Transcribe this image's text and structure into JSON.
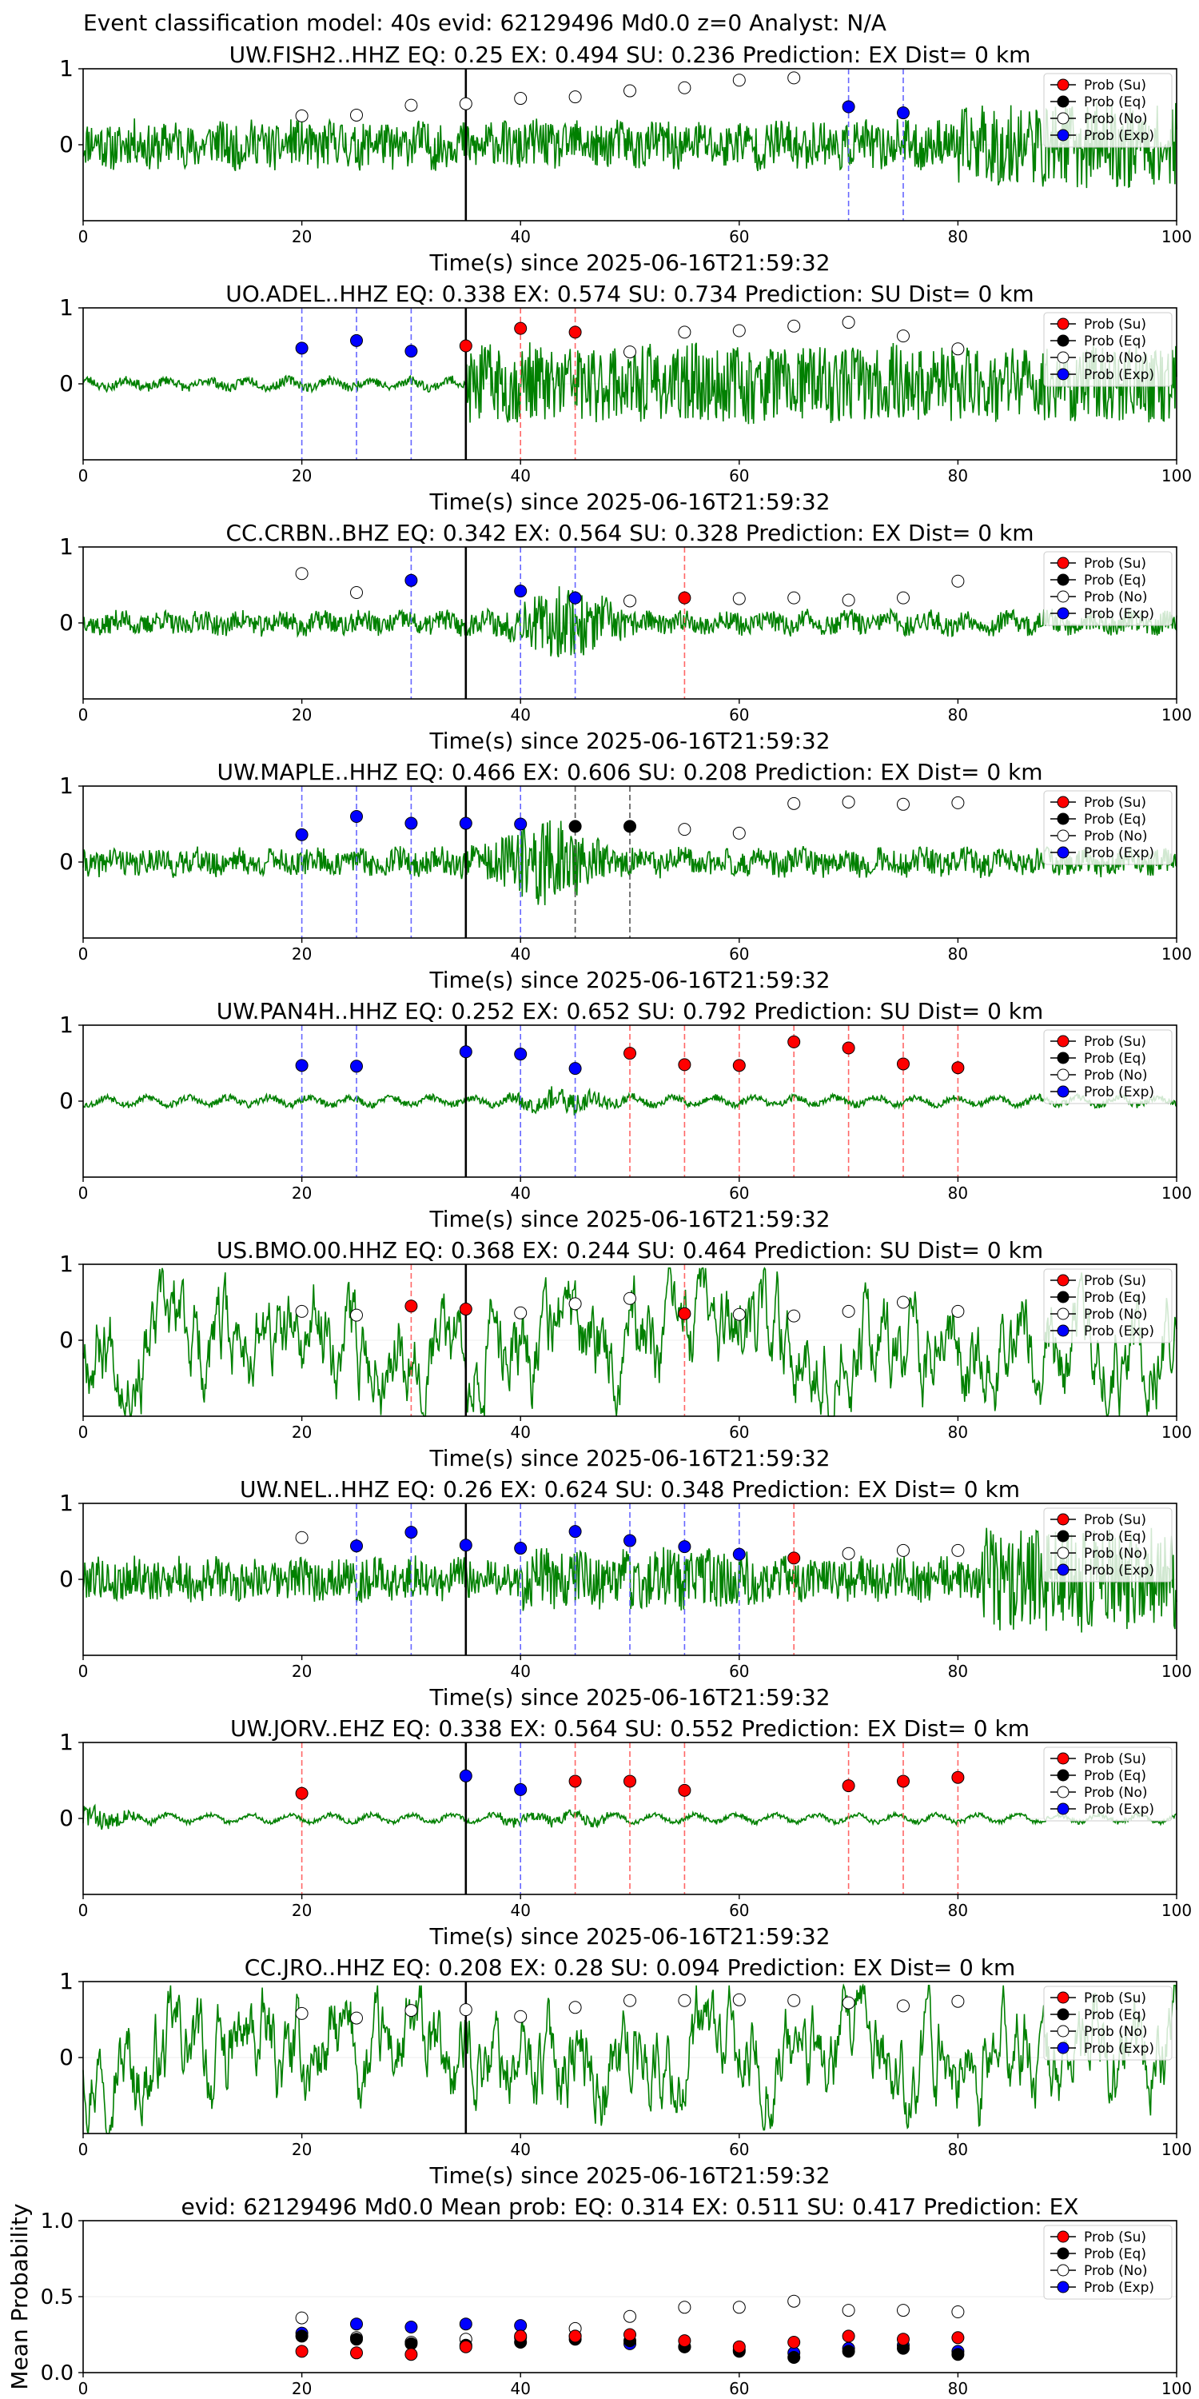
{
  "figure": {
    "suptitle": "Event classification model: 40s evid: 62129496 Md0.0 z=0 Analyst: N/A"
  },
  "legend_labels": [
    "Prob (Su)",
    "Prob (Eq)",
    "Prob (No)",
    "Prob (Exp)"
  ],
  "colors": {
    "waveform": "#008000",
    "su": "#ff0000",
    "eq": "#000000",
    "no": "#ffffff",
    "exp": "#0000ff",
    "origin_line": "#000000"
  },
  "chart_data": [
    {
      "type": "line",
      "title": "UW.FISH2..HHZ   EQ: 0.25  EX: 0.494  SU: 0.236   Prediction: EX    Dist= 0 km",
      "xlabel": "Time(s) since 2025-06-16T21:59:32",
      "xlim": [
        0,
        100
      ],
      "ylim": [
        -1,
        1
      ],
      "xticks": [
        "0",
        "20",
        "40",
        "60",
        "80",
        "100"
      ],
      "yticks": [
        "0",
        "1"
      ],
      "origin_time": 35,
      "waveform": {
        "amplitude": 0.3,
        "style": "steady",
        "seed": 11
      },
      "points": [
        {
          "x": 20,
          "y": 0.38,
          "cls": "no"
        },
        {
          "x": 25,
          "y": 0.39,
          "cls": "no"
        },
        {
          "x": 30,
          "y": 0.52,
          "cls": "no"
        },
        {
          "x": 35,
          "y": 0.54,
          "cls": "no"
        },
        {
          "x": 40,
          "y": 0.61,
          "cls": "no"
        },
        {
          "x": 45,
          "y": 0.63,
          "cls": "no"
        },
        {
          "x": 50,
          "y": 0.71,
          "cls": "no"
        },
        {
          "x": 55,
          "y": 0.75,
          "cls": "no"
        },
        {
          "x": 60,
          "y": 0.85,
          "cls": "no"
        },
        {
          "x": 65,
          "y": 0.88,
          "cls": "no"
        },
        {
          "x": 70,
          "y": 0.5,
          "cls": "exp"
        },
        {
          "x": 75,
          "y": 0.42,
          "cls": "exp"
        }
      ]
    },
    {
      "type": "line",
      "title": "UO.ADEL..HHZ   EQ: 0.338  EX: 0.574  SU: 0.734   Prediction: SU    Dist= 0 km",
      "xlabel": "Time(s) since 2025-06-16T21:59:32",
      "xlim": [
        0,
        100
      ],
      "ylim": [
        -1,
        1
      ],
      "xticks": [
        "0",
        "20",
        "40",
        "60",
        "80",
        "100"
      ],
      "yticks": [
        "0",
        "1"
      ],
      "origin_time": 35,
      "waveform": {
        "amplitude": 0.5,
        "style": "step",
        "seed": 23
      },
      "points": [
        {
          "x": 20,
          "y": 0.47,
          "cls": "exp"
        },
        {
          "x": 25,
          "y": 0.57,
          "cls": "exp"
        },
        {
          "x": 30,
          "y": 0.43,
          "cls": "exp"
        },
        {
          "x": 35,
          "y": 0.5,
          "cls": "su"
        },
        {
          "x": 40,
          "y": 0.73,
          "cls": "su"
        },
        {
          "x": 45,
          "y": 0.68,
          "cls": "su"
        },
        {
          "x": 50,
          "y": 0.42,
          "cls": "no"
        },
        {
          "x": 55,
          "y": 0.68,
          "cls": "no"
        },
        {
          "x": 60,
          "y": 0.7,
          "cls": "no"
        },
        {
          "x": 65,
          "y": 0.76,
          "cls": "no"
        },
        {
          "x": 70,
          "y": 0.81,
          "cls": "no"
        },
        {
          "x": 75,
          "y": 0.63,
          "cls": "no"
        },
        {
          "x": 80,
          "y": 0.46,
          "cls": "no"
        }
      ]
    },
    {
      "type": "line",
      "title": "CC.CRBN..BHZ   EQ: 0.342  EX: 0.564  SU: 0.328   Prediction: EX    Dist= 0 km",
      "xlabel": "Time(s) since 2025-06-16T21:59:32",
      "xlim": [
        0,
        100
      ],
      "ylim": [
        -1,
        1
      ],
      "xticks": [
        "0",
        "20",
        "40",
        "60",
        "80",
        "100"
      ],
      "yticks": [
        "0",
        "1"
      ],
      "origin_time": 35,
      "waveform": {
        "amplitude": 0.25,
        "style": "burst",
        "burst_at": 44,
        "seed": 37
      },
      "points": [
        {
          "x": 20,
          "y": 0.65,
          "cls": "no"
        },
        {
          "x": 25,
          "y": 0.4,
          "cls": "no"
        },
        {
          "x": 30,
          "y": 0.56,
          "cls": "exp"
        },
        {
          "x": 40,
          "y": 0.42,
          "cls": "exp"
        },
        {
          "x": 45,
          "y": 0.33,
          "cls": "exp"
        },
        {
          "x": 50,
          "y": 0.29,
          "cls": "no"
        },
        {
          "x": 55,
          "y": 0.33,
          "cls": "su"
        },
        {
          "x": 60,
          "y": 0.32,
          "cls": "no"
        },
        {
          "x": 65,
          "y": 0.33,
          "cls": "no"
        },
        {
          "x": 70,
          "y": 0.3,
          "cls": "no"
        },
        {
          "x": 75,
          "y": 0.33,
          "cls": "no"
        },
        {
          "x": 80,
          "y": 0.55,
          "cls": "no"
        }
      ]
    },
    {
      "type": "line",
      "title": "UW.MAPLE..HHZ   EQ: 0.466  EX: 0.606  SU: 0.208   Prediction: EX    Dist= 0 km",
      "xlabel": "Time(s) since 2025-06-16T21:59:32",
      "xlim": [
        0,
        100
      ],
      "ylim": [
        -1,
        1
      ],
      "xticks": [
        "0",
        "20",
        "40",
        "60",
        "80",
        "100"
      ],
      "yticks": [
        "0",
        "1"
      ],
      "origin_time": 35,
      "waveform": {
        "amplitude": 0.3,
        "style": "burst",
        "burst_at": 42,
        "seed": 41
      },
      "points": [
        {
          "x": 20,
          "y": 0.36,
          "cls": "exp"
        },
        {
          "x": 25,
          "y": 0.6,
          "cls": "exp"
        },
        {
          "x": 30,
          "y": 0.51,
          "cls": "exp"
        },
        {
          "x": 35,
          "y": 0.51,
          "cls": "exp"
        },
        {
          "x": 40,
          "y": 0.5,
          "cls": "exp"
        },
        {
          "x": 45,
          "y": 0.47,
          "cls": "eq"
        },
        {
          "x": 50,
          "y": 0.47,
          "cls": "eq"
        },
        {
          "x": 55,
          "y": 0.43,
          "cls": "no"
        },
        {
          "x": 60,
          "y": 0.38,
          "cls": "no"
        },
        {
          "x": 65,
          "y": 0.77,
          "cls": "no"
        },
        {
          "x": 70,
          "y": 0.79,
          "cls": "no"
        },
        {
          "x": 75,
          "y": 0.76,
          "cls": "no"
        },
        {
          "x": 80,
          "y": 0.78,
          "cls": "no"
        }
      ]
    },
    {
      "type": "line",
      "title": "UW.PAN4H..HHZ   EQ: 0.252  EX: 0.652  SU: 0.792   Prediction: SU    Dist= 0 km",
      "xlabel": "Time(s) since 2025-06-16T21:59:32",
      "xlim": [
        0,
        100
      ],
      "ylim": [
        -1,
        1
      ],
      "xticks": [
        "0",
        "20",
        "40",
        "60",
        "80",
        "100"
      ],
      "yticks": [
        "0",
        "1"
      ],
      "origin_time": 35,
      "waveform": {
        "amplitude": 0.08,
        "style": "burst",
        "burst_at": 44,
        "seed": 53
      },
      "points": [
        {
          "x": 20,
          "y": 0.47,
          "cls": "exp"
        },
        {
          "x": 25,
          "y": 0.46,
          "cls": "exp"
        },
        {
          "x": 35,
          "y": 0.65,
          "cls": "exp"
        },
        {
          "x": 40,
          "y": 0.62,
          "cls": "exp"
        },
        {
          "x": 45,
          "y": 0.43,
          "cls": "exp"
        },
        {
          "x": 50,
          "y": 0.63,
          "cls": "su"
        },
        {
          "x": 55,
          "y": 0.48,
          "cls": "su"
        },
        {
          "x": 60,
          "y": 0.47,
          "cls": "su"
        },
        {
          "x": 65,
          "y": 0.78,
          "cls": "su"
        },
        {
          "x": 70,
          "y": 0.7,
          "cls": "su"
        },
        {
          "x": 75,
          "y": 0.49,
          "cls": "su"
        },
        {
          "x": 80,
          "y": 0.44,
          "cls": "su"
        }
      ]
    },
    {
      "type": "line",
      "title": "US.BMO.00.HHZ   EQ: 0.368  EX: 0.244  SU: 0.464   Prediction: SU    Dist= 0 km",
      "xlabel": "Time(s) since 2025-06-16T21:59:32",
      "xlim": [
        0,
        100
      ],
      "ylim": [
        -1,
        1
      ],
      "xticks": [
        "0",
        "20",
        "40",
        "60",
        "80",
        "100"
      ],
      "yticks": [
        "0",
        "1"
      ],
      "origin_time": 35,
      "waveform": {
        "amplitude": 0.55,
        "style": "slow",
        "seed": 67
      },
      "points": [
        {
          "x": 20,
          "y": 0.38,
          "cls": "no"
        },
        {
          "x": 25,
          "y": 0.33,
          "cls": "no"
        },
        {
          "x": 30,
          "y": 0.45,
          "cls": "su"
        },
        {
          "x": 35,
          "y": 0.41,
          "cls": "su"
        },
        {
          "x": 40,
          "y": 0.36,
          "cls": "no"
        },
        {
          "x": 45,
          "y": 0.48,
          "cls": "no"
        },
        {
          "x": 50,
          "y": 0.55,
          "cls": "no"
        },
        {
          "x": 55,
          "y": 0.35,
          "cls": "su"
        },
        {
          "x": 60,
          "y": 0.34,
          "cls": "no"
        },
        {
          "x": 65,
          "y": 0.32,
          "cls": "no"
        },
        {
          "x": 70,
          "y": 0.38,
          "cls": "no"
        },
        {
          "x": 75,
          "y": 0.5,
          "cls": "no"
        },
        {
          "x": 80,
          "y": 0.38,
          "cls": "no"
        }
      ]
    },
    {
      "type": "line",
      "title": "UW.NEL..HHZ   EQ: 0.26  EX: 0.624  SU: 0.348   Prediction: EX    Dist= 0 km",
      "xlabel": "Time(s) since 2025-06-16T21:59:32",
      "xlim": [
        0,
        100
      ],
      "ylim": [
        -1,
        1
      ],
      "xticks": [
        "0",
        "20",
        "40",
        "60",
        "80",
        "100"
      ],
      "yticks": [
        "0",
        "1"
      ],
      "origin_time": 35,
      "waveform": {
        "amplitude": 0.3,
        "style": "tail",
        "seed": 79
      },
      "points": [
        {
          "x": 20,
          "y": 0.55,
          "cls": "no"
        },
        {
          "x": 25,
          "y": 0.44,
          "cls": "exp"
        },
        {
          "x": 30,
          "y": 0.62,
          "cls": "exp"
        },
        {
          "x": 35,
          "y": 0.45,
          "cls": "exp"
        },
        {
          "x": 40,
          "y": 0.41,
          "cls": "exp"
        },
        {
          "x": 45,
          "y": 0.63,
          "cls": "exp"
        },
        {
          "x": 50,
          "y": 0.51,
          "cls": "exp"
        },
        {
          "x": 55,
          "y": 0.43,
          "cls": "exp"
        },
        {
          "x": 60,
          "y": 0.33,
          "cls": "exp"
        },
        {
          "x": 65,
          "y": 0.28,
          "cls": "su"
        },
        {
          "x": 70,
          "y": 0.34,
          "cls": "no"
        },
        {
          "x": 75,
          "y": 0.38,
          "cls": "no"
        },
        {
          "x": 80,
          "y": 0.38,
          "cls": "no"
        }
      ]
    },
    {
      "type": "line",
      "title": "UW.JORV..EHZ   EQ: 0.338  EX: 0.564  SU: 0.552   Prediction: EX    Dist= 0 km",
      "xlabel": "Time(s) since 2025-06-16T21:59:32",
      "xlim": [
        0,
        100
      ],
      "ylim": [
        -1,
        1
      ],
      "xticks": [
        "0",
        "20",
        "40",
        "60",
        "80",
        "100"
      ],
      "yticks": [
        "0",
        "1"
      ],
      "origin_time": 35,
      "waveform": {
        "amplitude": 0.06,
        "style": "early",
        "seed": 83
      },
      "points": [
        {
          "x": 20,
          "y": 0.33,
          "cls": "su"
        },
        {
          "x": 35,
          "y": 0.56,
          "cls": "exp"
        },
        {
          "x": 40,
          "y": 0.38,
          "cls": "exp"
        },
        {
          "x": 45,
          "y": 0.49,
          "cls": "su"
        },
        {
          "x": 50,
          "y": 0.49,
          "cls": "su"
        },
        {
          "x": 55,
          "y": 0.37,
          "cls": "su"
        },
        {
          "x": 70,
          "y": 0.43,
          "cls": "su"
        },
        {
          "x": 75,
          "y": 0.49,
          "cls": "su"
        },
        {
          "x": 80,
          "y": 0.54,
          "cls": "su"
        }
      ]
    },
    {
      "type": "line",
      "title": "CC.JRO..HHZ   EQ: 0.208  EX: 0.28  SU: 0.094   Prediction: EX    Dist= 0 km",
      "xlabel": "Time(s) since 2025-06-16T21:59:32",
      "xlim": [
        0,
        100
      ],
      "ylim": [
        -1,
        1
      ],
      "xticks": [
        "0",
        "20",
        "40",
        "60",
        "80",
        "100"
      ],
      "yticks": [
        "0",
        "1"
      ],
      "origin_time": 35,
      "waveform": {
        "amplitude": 0.55,
        "style": "slow",
        "seed": 97
      },
      "points": [
        {
          "x": 20,
          "y": 0.58,
          "cls": "no"
        },
        {
          "x": 25,
          "y": 0.52,
          "cls": "no"
        },
        {
          "x": 30,
          "y": 0.62,
          "cls": "no"
        },
        {
          "x": 35,
          "y": 0.63,
          "cls": "no"
        },
        {
          "x": 40,
          "y": 0.54,
          "cls": "no"
        },
        {
          "x": 45,
          "y": 0.66,
          "cls": "no"
        },
        {
          "x": 50,
          "y": 0.75,
          "cls": "no"
        },
        {
          "x": 55,
          "y": 0.75,
          "cls": "no"
        },
        {
          "x": 60,
          "y": 0.76,
          "cls": "no"
        },
        {
          "x": 65,
          "y": 0.75,
          "cls": "no"
        },
        {
          "x": 70,
          "y": 0.72,
          "cls": "no"
        },
        {
          "x": 75,
          "y": 0.68,
          "cls": "no"
        },
        {
          "x": 80,
          "y": 0.74,
          "cls": "no"
        }
      ]
    },
    {
      "type": "scatter",
      "title": "evid: 62129496  Md0.0   Mean prob:   EQ: 0.314  EX: 0.511  SU: 0.417   Prediction: EX",
      "ylabel": "Mean Probability",
      "xlim": [
        0,
        100
      ],
      "ylim": [
        0,
        1
      ],
      "xticks": [
        "0",
        "20",
        "40",
        "60",
        "80",
        "100"
      ],
      "yticks": [
        "0.0",
        "0.5",
        "1.0"
      ],
      "x": [
        20,
        25,
        30,
        35,
        40,
        45,
        50,
        55,
        60,
        65,
        70,
        75,
        80
      ],
      "series": [
        {
          "name": "Prob (No)",
          "cls": "no",
          "values": [
            0.36,
            0.23,
            0.2,
            0.22,
            0.23,
            0.29,
            0.37,
            0.43,
            0.43,
            0.47,
            0.41,
            0.41,
            0.4
          ]
        },
        {
          "name": "Prob (Exp)",
          "cls": "exp",
          "values": [
            0.26,
            0.32,
            0.3,
            0.32,
            0.31,
            0.24,
            0.19,
            0.17,
            0.15,
            0.13,
            0.16,
            0.18,
            0.14
          ]
        },
        {
          "name": "Prob (Eq)",
          "cls": "eq",
          "values": [
            0.24,
            0.22,
            0.19,
            0.18,
            0.2,
            0.22,
            0.21,
            0.17,
            0.14,
            0.1,
            0.14,
            0.16,
            0.12
          ]
        },
        {
          "name": "Prob (Su)",
          "cls": "su",
          "values": [
            0.14,
            0.13,
            0.12,
            0.17,
            0.24,
            0.24,
            0.25,
            0.21,
            0.17,
            0.2,
            0.24,
            0.22,
            0.23
          ]
        }
      ]
    }
  ]
}
